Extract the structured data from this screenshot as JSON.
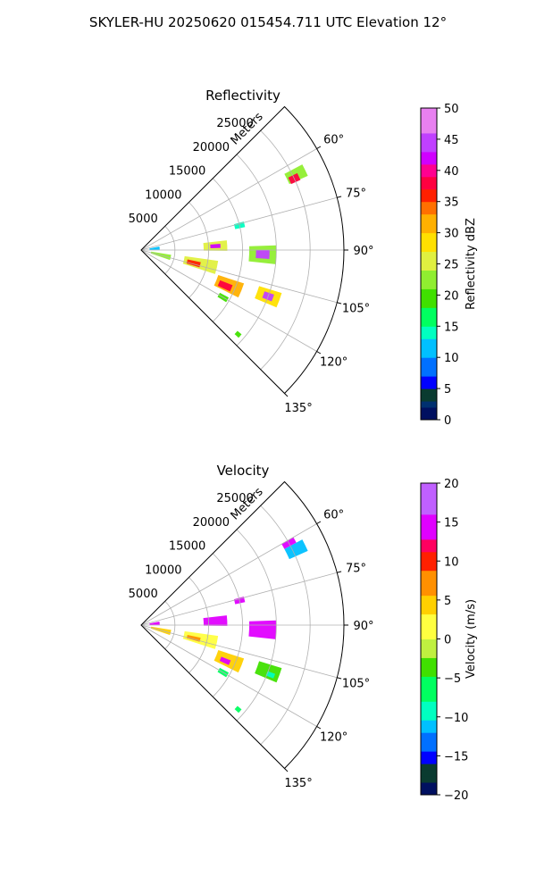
{
  "figure": {
    "suptitle": "SKYLER-HU  20250620  015454.711 UTC Elevation 12°"
  },
  "chart_data": [
    {
      "type": "heatmap",
      "projection": "polar-sector",
      "title": "Reflectivity",
      "radial_label": "Meters",
      "radial_ticks": [
        5000,
        10000,
        15000,
        20000,
        25000
      ],
      "radial_tick_labels": [
        "5000",
        "10000",
        "15000",
        "20000",
        "25000"
      ],
      "rlim": [
        0,
        30000
      ],
      "angle_ticks": [
        60,
        75,
        90,
        105,
        120,
        135
      ],
      "angle_tick_labels": [
        "60°",
        "75°",
        "90°",
        "105°",
        "120°",
        "135°"
      ],
      "theta_range": [
        45,
        135
      ],
      "grid": true,
      "colorbar": {
        "label": "Reflectivity dBZ",
        "range": [
          0,
          50
        ],
        "ticks": [
          0,
          5,
          10,
          15,
          20,
          25,
          30,
          35,
          40,
          45,
          50
        ],
        "tick_labels": [
          "0",
          "5",
          "10",
          "15",
          "20",
          "25",
          "30",
          "35",
          "40",
          "45",
          "50"
        ]
      },
      "cells": [
        {
          "azimuth": 64,
          "range": 25500,
          "az_width": 4,
          "range_width": 3000,
          "value": 22
        },
        {
          "azimuth": 65,
          "range": 25000,
          "az_width": 2.5,
          "range_width": 1500,
          "value": 38
        },
        {
          "azimuth": 87,
          "range": 11000,
          "az_width": 7,
          "range_width": 3500,
          "value": 24
        },
        {
          "azimuth": 87,
          "range": 11000,
          "az_width": 3,
          "range_width": 1500,
          "value": 42
        },
        {
          "azimuth": 92,
          "range": 18000,
          "az_width": 8,
          "range_width": 4000,
          "value": 22
        },
        {
          "azimuth": 92,
          "range": 18000,
          "az_width": 4,
          "range_width": 2000,
          "value": 44
        },
        {
          "azimuth": 103,
          "range": 9000,
          "az_width": 10,
          "range_width": 5000,
          "value": 26
        },
        {
          "azimuth": 104,
          "range": 8000,
          "az_width": 5,
          "range_width": 2000,
          "value": 36
        },
        {
          "azimuth": 112,
          "range": 14000,
          "az_width": 8,
          "range_width": 4000,
          "value": 30
        },
        {
          "azimuth": 113,
          "range": 13500,
          "az_width": 4,
          "range_width": 2000,
          "value": 38
        },
        {
          "azimuth": 110,
          "range": 20000,
          "az_width": 6,
          "range_width": 3500,
          "value": 28
        },
        {
          "azimuth": 110,
          "range": 20000,
          "az_width": 3,
          "range_width": 1500,
          "value": 44
        },
        {
          "azimuth": 104,
          "range": 3000,
          "az_width": 10,
          "range_width": 3000,
          "value": 22
        },
        {
          "azimuth": 120,
          "range": 14000,
          "az_width": 3,
          "range_width": 1500,
          "value": 18
        },
        {
          "azimuth": 131,
          "range": 19000,
          "az_width": 2,
          "range_width": 800,
          "value": 20
        },
        {
          "azimuth": 76,
          "range": 15000,
          "az_width": 3,
          "range_width": 1500,
          "value": 14
        },
        {
          "azimuth": 84,
          "range": 2000,
          "az_width": 10,
          "range_width": 1500,
          "value": 12
        }
      ]
    },
    {
      "type": "heatmap",
      "projection": "polar-sector",
      "title": "Velocity",
      "radial_label": "Meters",
      "radial_ticks": [
        5000,
        10000,
        15000,
        20000,
        25000
      ],
      "radial_tick_labels": [
        "5000",
        "10000",
        "15000",
        "20000",
        "25000"
      ],
      "rlim": [
        0,
        30000
      ],
      "angle_ticks": [
        60,
        75,
        90,
        105,
        120,
        135
      ],
      "angle_tick_labels": [
        "60°",
        "75°",
        "90°",
        "105°",
        "120°",
        "135°"
      ],
      "theta_range": [
        45,
        135
      ],
      "grid": true,
      "colorbar": {
        "label": "Velocity (m/s)",
        "range": [
          -20,
          20
        ],
        "ticks": [
          -20,
          -15,
          -10,
          -5,
          0,
          5,
          10,
          15,
          20
        ],
        "tick_labels": [
          "−20",
          "−15",
          "−10",
          "−5",
          "0",
          "5",
          "10",
          "15",
          "20"
        ]
      },
      "cells": [
        {
          "azimuth": 64,
          "range": 25500,
          "az_width": 4,
          "range_width": 3000,
          "value": -11
        },
        {
          "azimuth": 61,
          "range": 25000,
          "az_width": 2,
          "range_width": 2000,
          "value": 14
        },
        {
          "azimuth": 87,
          "range": 11000,
          "az_width": 7,
          "range_width": 3500,
          "value": 13
        },
        {
          "azimuth": 92,
          "range": 18000,
          "az_width": 8,
          "range_width": 4000,
          "value": 13
        },
        {
          "azimuth": 103,
          "range": 9000,
          "az_width": 10,
          "range_width": 5000,
          "value": 2
        },
        {
          "azimuth": 104,
          "range": 8000,
          "az_width": 4,
          "range_width": 2000,
          "value": 7
        },
        {
          "azimuth": 112,
          "range": 14000,
          "az_width": 8,
          "range_width": 4000,
          "value": 3
        },
        {
          "azimuth": 113,
          "range": 13500,
          "az_width": 3,
          "range_width": 1500,
          "value": 14
        },
        {
          "azimuth": 110,
          "range": 20000,
          "az_width": 6,
          "range_width": 3500,
          "value": -5
        },
        {
          "azimuth": 111,
          "range": 20500,
          "az_width": 2,
          "range_width": 1200,
          "value": -10
        },
        {
          "azimuth": 104,
          "range": 3000,
          "az_width": 10,
          "range_width": 3000,
          "value": 5
        },
        {
          "azimuth": 120,
          "range": 14000,
          "az_width": 3,
          "range_width": 1500,
          "value": -7
        },
        {
          "azimuth": 131,
          "range": 19000,
          "az_width": 2,
          "range_width": 800,
          "value": -8
        },
        {
          "azimuth": 76,
          "range": 15000,
          "az_width": 3,
          "range_width": 1500,
          "value": 13
        },
        {
          "azimuth": 84,
          "range": 2000,
          "az_width": 10,
          "range_width": 1500,
          "value": 13
        }
      ]
    }
  ]
}
